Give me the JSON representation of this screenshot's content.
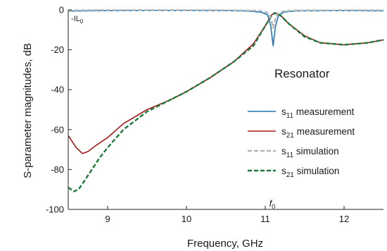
{
  "chart_data": {
    "type": "line",
    "xlabel": "Frequency, GHz",
    "ylabel": "S-parameter magnitudes, dB",
    "xlim": [
      8.5,
      12.5
    ],
    "ylim": [
      -100,
      0
    ],
    "xticks": [
      9,
      10,
      11,
      12
    ],
    "yticks": [
      0,
      -20,
      -40,
      -60,
      -80,
      -100
    ],
    "grid": false,
    "legend_placement": "right",
    "legend_title": "Resonator",
    "annotations": [
      {
        "text": "-IL",
        "sub": "0",
        "x": 8.5,
        "y": -2
      },
      {
        "text": "f",
        "sub": "0",
        "x": 11.1,
        "y": -100
      }
    ],
    "series": [
      {
        "name": "measurement",
        "param": "s",
        "sub": "11",
        "color": "#1f77b4",
        "dash": "solid",
        "x": [
          8.5,
          9.0,
          9.5,
          10.0,
          10.5,
          10.8,
          10.95,
          11.03,
          11.07,
          11.1,
          11.13,
          11.17,
          11.25,
          11.4,
          12.0,
          12.5
        ],
        "values": [
          -0.6,
          -0.4,
          -0.3,
          -0.3,
          -0.4,
          -0.6,
          -1.2,
          -2.5,
          -8,
          -18,
          -8,
          -2.5,
          -1.0,
          -0.5,
          -0.4,
          -0.5
        ]
      },
      {
        "name": "measurement",
        "param": "s",
        "sub": "21",
        "color": "#a51a1a",
        "dash": "solid",
        "x": [
          8.5,
          8.6,
          8.68,
          8.75,
          8.85,
          9.0,
          9.2,
          9.5,
          9.8,
          10.0,
          10.3,
          10.6,
          10.85,
          11.0,
          11.08,
          11.12,
          11.2,
          11.3,
          11.5,
          11.7,
          12.0,
          12.3,
          12.5
        ],
        "values": [
          -63,
          -69,
          -72,
          -71,
          -68,
          -64,
          -57,
          -50,
          -45,
          -41,
          -34,
          -26,
          -17,
          -8,
          -2.5,
          -1.5,
          -3,
          -7,
          -13,
          -16.5,
          -17.5,
          -16.5,
          -15
        ]
      },
      {
        "name": "simulation",
        "param": "s",
        "sub": "11",
        "color": "#b5b5b5",
        "dash": "dashed",
        "x": [
          8.5,
          9.0,
          9.5,
          10.0,
          10.5,
          10.8,
          10.95,
          11.03,
          11.07,
          11.1,
          11.13,
          11.17,
          11.25,
          11.4,
          12.0,
          12.5
        ],
        "values": [
          -0.2,
          -0.1,
          -0.1,
          -0.1,
          -0.2,
          -0.3,
          -0.6,
          -1.5,
          -4,
          -9,
          -4,
          -1.5,
          -0.6,
          -0.3,
          -0.2,
          -0.2
        ]
      },
      {
        "name": "simulation",
        "param": "s",
        "sub": "21",
        "color": "#1b7a3a",
        "dash": "dashed",
        "x": [
          8.5,
          8.57,
          8.63,
          8.7,
          8.8,
          8.9,
          9.0,
          9.2,
          9.5,
          9.8,
          10.0,
          10.3,
          10.6,
          10.85,
          11.0,
          11.08,
          11.12,
          11.2,
          11.3,
          11.5,
          11.7,
          12.0,
          12.3,
          12.5
        ],
        "values": [
          -89,
          -91,
          -90,
          -86,
          -80,
          -74,
          -69,
          -60,
          -51,
          -45,
          -41,
          -34,
          -26,
          -18,
          -8,
          -3,
          -1.5,
          -3,
          -7,
          -13.5,
          -16.5,
          -17.5,
          -16.5,
          -15
        ]
      }
    ]
  }
}
